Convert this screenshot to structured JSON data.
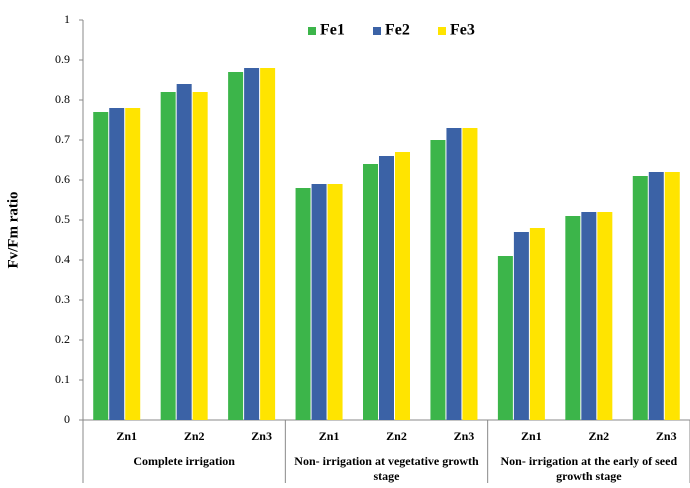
{
  "chart_data": {
    "type": "bar",
    "y_label": "Fv/Fm ratio",
    "categories": [
      "Zn1",
      "Zn2",
      "Zn3",
      "Zn1",
      "Zn2",
      "Zn3",
      "Zn1",
      "Zn2",
      "Zn3"
    ],
    "groups": [
      "Complete irrigation",
      "Non- irrigation at vegetative growth stage",
      "Non- irrigation at the early of seed growth stage"
    ],
    "series": [
      {
        "name": "Fe1",
        "color": "#3cb54a",
        "values": [
          0.77,
          0.82,
          0.87,
          0.58,
          0.64,
          0.7,
          0.41,
          0.51,
          0.61
        ]
      },
      {
        "name": "Fe2",
        "color": "#3b62a6",
        "values": [
          0.78,
          0.84,
          0.88,
          0.59,
          0.66,
          0.73,
          0.47,
          0.52,
          0.62
        ]
      },
      {
        "name": "Fe3",
        "color": "#ffe400",
        "values": [
          0.78,
          0.82,
          0.88,
          0.59,
          0.67,
          0.73,
          0.48,
          0.52,
          0.62
        ]
      }
    ],
    "ylim": [
      0,
      1
    ],
    "yticks": [
      0,
      0.1,
      0.2,
      0.3,
      0.4,
      0.5,
      0.6,
      0.7,
      0.8,
      0.9,
      1
    ],
    "legend": "top-right",
    "grid": false
  }
}
